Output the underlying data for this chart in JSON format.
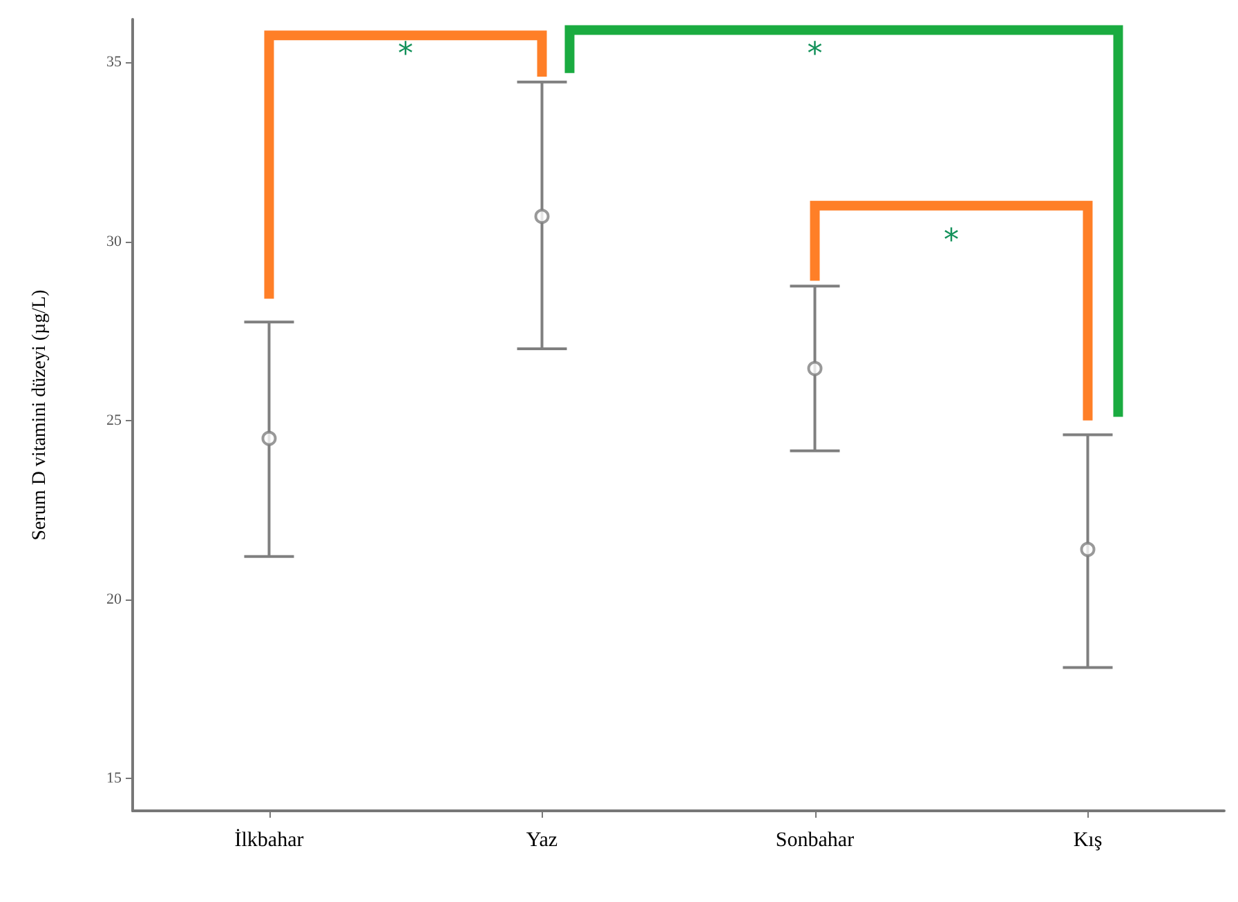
{
  "chart_data": {
    "type": "scatter",
    "ylabel": "Serum D vitamini düzeyi (µg/L)",
    "categories": [
      "İlkbahar",
      "Yaz",
      "Sonbahar",
      "Kış"
    ],
    "values": [
      24.5,
      30.7,
      26.45,
      21.4
    ],
    "errors": [
      [
        21.2,
        27.75
      ],
      [
        27.0,
        34.45
      ],
      [
        24.15,
        28.75
      ],
      [
        18.1,
        24.6
      ]
    ],
    "color": "#7f7f7f",
    "marker": "circle",
    "grid": false,
    "ylim": [
      14.1,
      36.2
    ],
    "yticks": [
      15,
      20,
      25,
      30,
      35
    ],
    "annotations": [
      "*",
      "*",
      "*"
    ]
  }
}
